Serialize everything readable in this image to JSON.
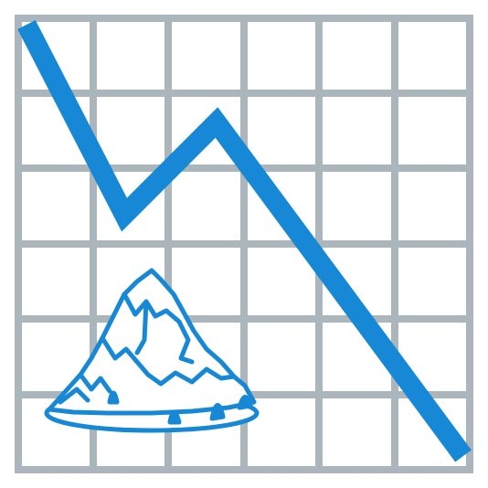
{
  "icon": {
    "name": "chart-decreasing-with-iceberg",
    "grid_color": "#AAB5BC",
    "line_color": "#1788D6",
    "ice_stroke": "#1788D6",
    "ice_fill": "#FFFFFF",
    "background": "#FFFFFF"
  }
}
